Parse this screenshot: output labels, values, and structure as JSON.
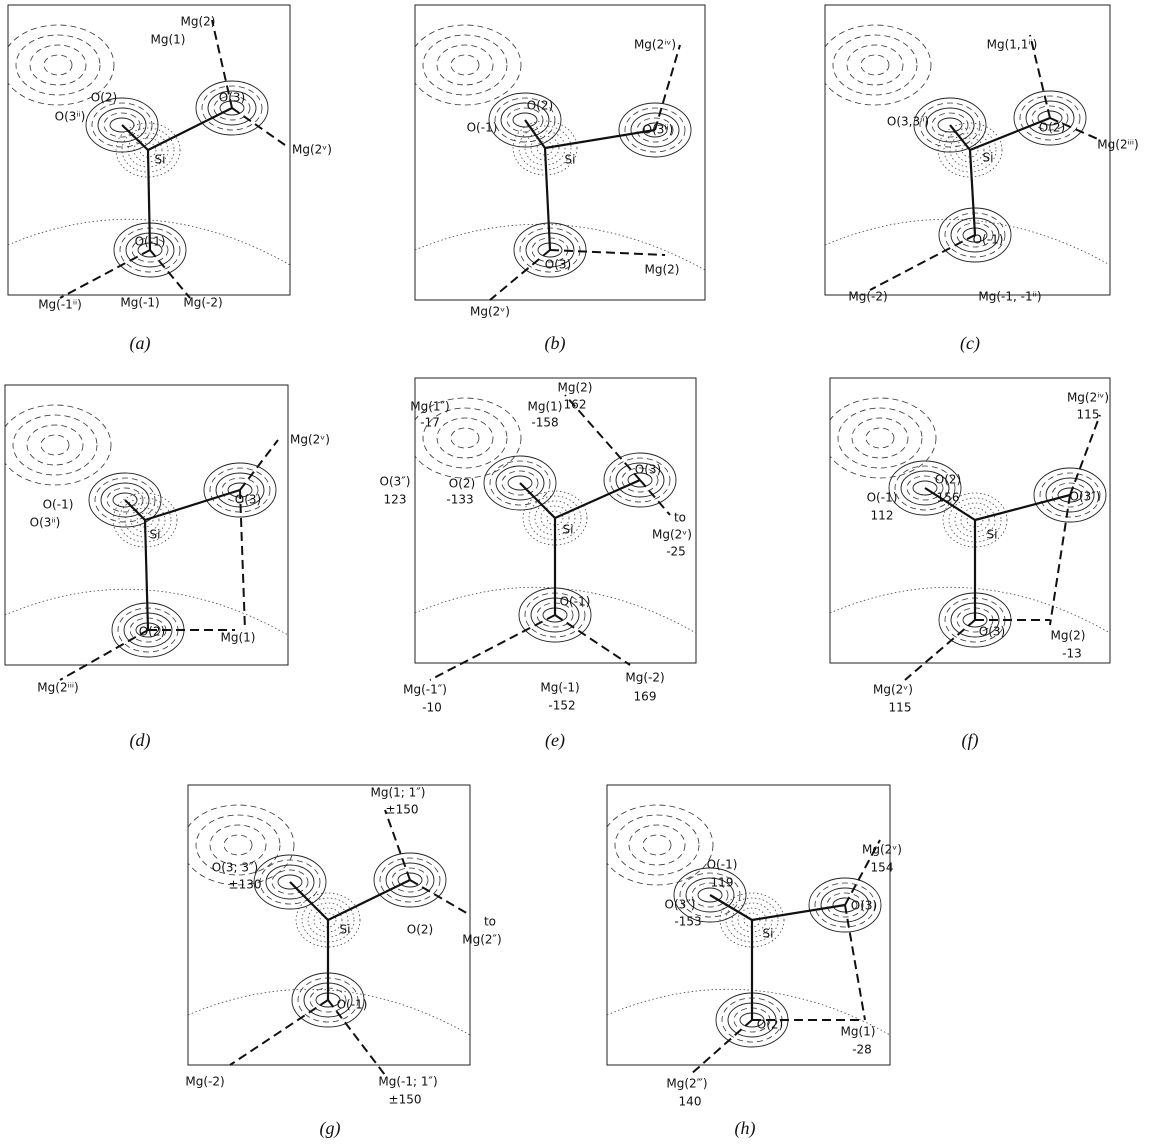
{
  "panels": [
    {
      "caption": "(a)",
      "labels": [
        "Mg(2)",
        "Mg(1)",
        "O(3)",
        "O(2)",
        "O(3ⁱⁱ)",
        "Mg(2ᵛ)",
        "Si",
        "O(-1)",
        "Mg(-1ⁱⁱ)",
        "Mg(-1)",
        "Mg(-2)"
      ]
    },
    {
      "caption": "(b)",
      "labels": [
        "Mg(2ⁱᵛ)",
        "O(2)",
        "O(-1)",
        "O(3ⁱⁱ)",
        "Si",
        "O(3)",
        "Mg(2)",
        "Mg(2ᵛ)"
      ]
    },
    {
      "caption": "(c)",
      "labels": [
        "Mg(1,1ⁱⁱ)",
        "O(3,3ⁱⁱ)",
        "O(2)",
        "Mg(2ⁱⁱⁱ)",
        "Si",
        "O(-1)",
        "Mg(-2)",
        "Mg(-1, -1ⁱⁱ)"
      ]
    },
    {
      "caption": "(d)",
      "labels": [
        "Mg(2ᵛ)",
        "O(-1)",
        "O(3ⁱⁱ)",
        "O(3)",
        "Si",
        "O(2)",
        "Mg(1)",
        "Mg(2ⁱⁱⁱ)"
      ]
    },
    {
      "caption": "(e)",
      "labels": [
        "Mg(2)",
        "162",
        "Mg(1)",
        "-158",
        "Mg(1″)",
        "-17",
        "O(2)",
        "-133",
        "O(3″)",
        "123",
        "O(3)",
        "to",
        "Mg(2ᵛ)",
        "-25",
        "Si",
        "O(-1)",
        "Mg(-2)",
        "169",
        "Mg(-1)",
        "-152",
        "Mg(-1″)",
        "-10"
      ]
    },
    {
      "caption": "(f)",
      "labels": [
        "Mg(2ⁱᵛ)",
        "115",
        "O(2)",
        "156",
        "O(-1)",
        "112",
        "O(3″)",
        "Si",
        "O(3)",
        "Mg(2)",
        "-13",
        "Mg(2ᵛ)",
        "115"
      ]
    },
    {
      "caption": "(g)",
      "labels": [
        "Mg(1; 1″)",
        "±150",
        "O(3; 3″)",
        "±130",
        "O(2)",
        "to",
        "Mg(2″)",
        "Si",
        "O(-1)",
        "Mg(-2)",
        "Mg(-1; 1″)",
        "±150"
      ]
    },
    {
      "caption": "(h)",
      "labels": [
        "Mg(2ᵛ)",
        "154",
        "O(-1)",
        "119",
        "O(3″)",
        "-153",
        "O(3)",
        "Si",
        "O(2)",
        "Mg(1)",
        "-28",
        "Mg(2‴)",
        "140"
      ]
    }
  ]
}
